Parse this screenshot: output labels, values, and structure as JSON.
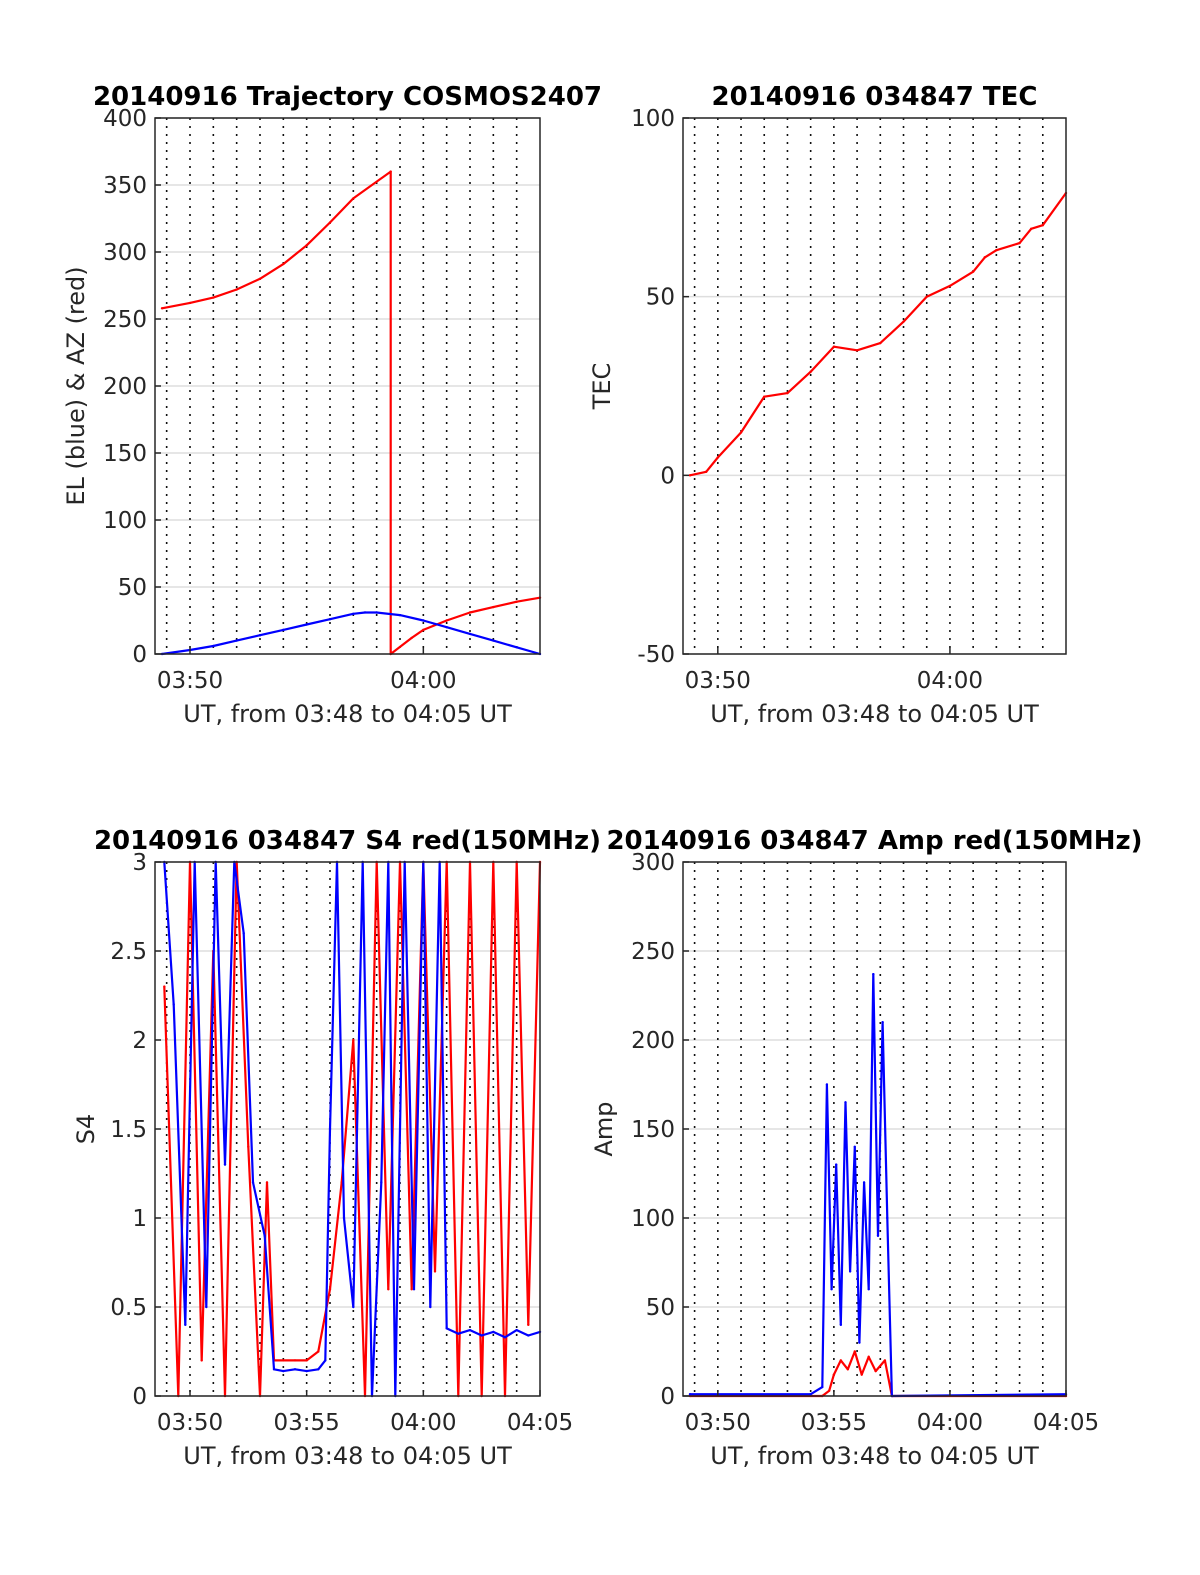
{
  "chart_data": [
    {
      "type": "line",
      "title": "20140916 Trajectory COSMOS2407",
      "xlabel": "UT, from 03:48 to 04:05 UT",
      "ylabel": "EL (blue) & AZ (red)",
      "xlim": [
        "03:48:30",
        "04:05:00"
      ],
      "ylim": [
        0,
        400
      ],
      "xticks": [
        "03:50",
        "04:00"
      ],
      "yticks": [
        0,
        50,
        100,
        150,
        200,
        250,
        300,
        350,
        400
      ],
      "grid": true,
      "x_unit": "minutes after 03:48",
      "series": [
        {
          "color": "#ff0000",
          "x": [
            0.8,
            2.0,
            3.0,
            4.0,
            5.0,
            6.0,
            7.0,
            8.0,
            9.0,
            10.6,
            10.6,
            11.5,
            12.0,
            13.0,
            14.0,
            15.0,
            16.0,
            17.0
          ],
          "values": [
            258,
            262,
            266,
            272,
            280,
            291,
            305,
            322,
            340,
            360,
            0,
            12,
            18,
            25,
            31,
            35,
            39,
            42
          ]
        },
        {
          "color": "#0000ff",
          "x": [
            0.8,
            2.0,
            3.0,
            4.0,
            5.0,
            6.0,
            7.0,
            8.0,
            9.0,
            9.5,
            10.0,
            11.0,
            12.0,
            13.0,
            14.0,
            15.0,
            16.0,
            17.0
          ],
          "values": [
            0,
            3,
            6,
            10,
            14,
            18,
            22,
            26,
            30,
            31,
            31,
            29,
            25,
            20,
            15,
            10,
            5,
            0
          ]
        }
      ]
    },
    {
      "type": "line",
      "title": "20140916 034847 TEC",
      "xlabel": "UT, from 03:48 to 04:05 UT",
      "ylabel": "TEC",
      "xlim": [
        "03:48:30",
        "04:05:00"
      ],
      "ylim": [
        -50,
        100
      ],
      "xticks": [
        "03:50",
        "04:00"
      ],
      "yticks": [
        -50,
        0,
        50,
        100
      ],
      "grid": true,
      "x_unit": "minutes after 03:48",
      "series": [
        {
          "color": "#ff0000",
          "x": [
            0.8,
            1.5,
            2.0,
            3.0,
            4.0,
            5.0,
            6.0,
            7.0,
            8.0,
            9.0,
            10.0,
            11.0,
            12.0,
            13.0,
            13.5,
            14.0,
            15.0,
            15.5,
            16.0,
            17.0
          ],
          "values": [
            0,
            1,
            5,
            12,
            22,
            23,
            29,
            36,
            35,
            37,
            43,
            50,
            53,
            57,
            61,
            63,
            65,
            69,
            70,
            79
          ]
        }
      ]
    },
    {
      "type": "line",
      "title": "20140916 034847 S4 red(150MHz)",
      "xlabel": "UT, from 03:48 to 04:05 UT",
      "ylabel": "S4",
      "xlim": [
        "03:48:30",
        "04:05:00"
      ],
      "ylim": [
        0,
        3
      ],
      "xticks": [
        "03:50",
        "03:55",
        "04:00",
        "04:05"
      ],
      "yticks": [
        0,
        0.5,
        1,
        1.5,
        2,
        2.5,
        3
      ],
      "grid": true,
      "x_unit": "minutes after 03:48",
      "series": [
        {
          "color": "#ff0000",
          "x": [
            0.9,
            1.5,
            2.0,
            2.5,
            3.0,
            3.5,
            4.0,
            4.5,
            5.0,
            5.3,
            5.6,
            6.0,
            6.5,
            7.0,
            7.5,
            8.0,
            8.5,
            9.0,
            9.5,
            10.0,
            10.5,
            11.0,
            11.5,
            12.0,
            12.5,
            13.0,
            13.5,
            14.0,
            14.5,
            15.0,
            15.5,
            16.0,
            16.5,
            17.0
          ],
          "values": [
            2.3,
            0,
            3,
            0.2,
            2.5,
            0,
            3,
            1.4,
            0,
            1.2,
            0.2,
            0.2,
            0.2,
            0.2,
            0.25,
            0.6,
            1.2,
            2.0,
            0,
            3,
            0.6,
            3,
            0.6,
            3,
            0.7,
            3,
            0,
            3,
            0,
            3,
            0,
            3,
            0.4,
            3
          ]
        },
        {
          "color": "#0000ff",
          "x": [
            0.9,
            1.3,
            1.8,
            2.2,
            2.7,
            3.1,
            3.5,
            3.9,
            4.3,
            4.7,
            5.2,
            5.6,
            6.0,
            6.5,
            7.0,
            7.5,
            7.8,
            8.0,
            8.3,
            8.6,
            9.0,
            9.4,
            9.8,
            10.2,
            10.5,
            10.8,
            11.2,
            11.6,
            12.0,
            12.3,
            12.7,
            13.0,
            13.5,
            14.0,
            14.5,
            15.0,
            15.5,
            16.0,
            16.5,
            17.0
          ],
          "values": [
            3,
            2.2,
            0.4,
            3,
            0.5,
            3,
            1.3,
            3,
            2.6,
            1.2,
            0.9,
            0.15,
            0.14,
            0.15,
            0.14,
            0.15,
            0.2,
            1.5,
            3,
            1.0,
            0.5,
            3,
            0,
            1.2,
            3,
            0,
            3,
            0.6,
            3,
            0.5,
            3,
            0.38,
            0.35,
            0.37,
            0.34,
            0.36,
            0.33,
            0.37,
            0.34,
            0.36
          ]
        }
      ]
    },
    {
      "type": "line",
      "title": "20140916 034847 Amp red(150MHz)",
      "xlabel": "UT, from 03:48 to 04:05 UT",
      "ylabel": "Amp",
      "xlim": [
        "03:48:30",
        "04:05:00"
      ],
      "ylim": [
        0,
        300
      ],
      "xticks": [
        "03:50",
        "03:55",
        "04:00",
        "04:05"
      ],
      "yticks": [
        0,
        50,
        100,
        150,
        200,
        250,
        300
      ],
      "grid": true,
      "x_unit": "minutes after 03:48",
      "series": [
        {
          "color": "#ff0000",
          "x": [
            0.8,
            6.5,
            6.8,
            7.0,
            7.3,
            7.6,
            7.9,
            8.2,
            8.5,
            8.8,
            9.2,
            9.5,
            17.0
          ],
          "values": [
            0,
            0,
            3,
            12,
            20,
            15,
            25,
            12,
            22,
            14,
            20,
            0,
            0
          ]
        },
        {
          "color": "#0000ff",
          "x": [
            0.8,
            6.0,
            6.5,
            6.7,
            6.9,
            7.1,
            7.3,
            7.5,
            7.7,
            7.9,
            8.1,
            8.3,
            8.5,
            8.7,
            8.9,
            9.1,
            9.3,
            9.5,
            17.0
          ],
          "values": [
            1,
            1,
            5,
            175,
            60,
            130,
            40,
            165,
            70,
            140,
            30,
            120,
            60,
            237,
            90,
            210,
            100,
            0,
            1
          ]
        }
      ]
    }
  ]
}
